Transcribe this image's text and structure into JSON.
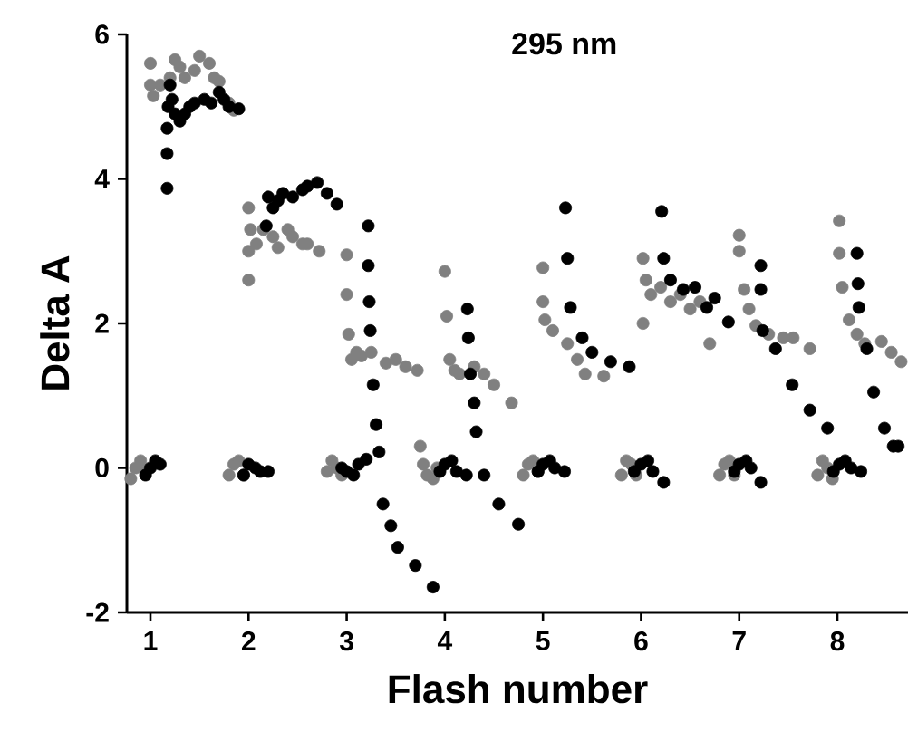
{
  "chart_data": {
    "type": "scatter",
    "title": "295 nm",
    "xlabel": "Flash number",
    "ylabel": "Delta A",
    "xlim": [
      0.76,
      8.72
    ],
    "ylim": [
      -2,
      6
    ],
    "xticks": [
      1,
      2,
      3,
      4,
      5,
      6,
      7,
      8
    ],
    "yticks": [
      -2,
      0,
      2,
      4,
      6
    ],
    "marker": "circle",
    "series": [
      {
        "color": "#808080",
        "x": [
          0.8,
          0.85,
          0.9,
          0.95,
          1.0,
          1.0,
          1.03,
          1.1,
          1.2,
          1.25,
          1.3,
          1.35,
          1.45,
          1.5,
          1.6,
          1.65,
          1.7,
          1.8,
          1.85,
          1.8,
          1.85,
          1.9,
          1.95,
          2.0,
          2.0,
          2.0,
          2.02,
          2.08,
          2.15,
          2.25,
          2.3,
          2.4,
          2.45,
          2.55,
          2.6,
          2.72,
          2.8,
          2.85,
          2.9,
          2.95,
          3.0,
          3.0,
          3.02,
          3.05,
          3.1,
          3.15,
          3.25,
          3.4,
          3.5,
          3.6,
          3.72,
          3.75,
          3.78,
          3.82,
          3.88,
          3.92,
          4.0,
          4.02,
          4.05,
          4.1,
          4.15,
          4.3,
          4.4,
          4.5,
          4.68,
          4.8,
          4.85,
          4.9,
          4.95,
          5.0,
          5.0,
          5.02,
          5.1,
          5.25,
          5.35,
          5.43,
          5.62,
          5.8,
          5.85,
          5.9,
          5.95,
          6.02,
          6.02,
          6.05,
          6.1,
          6.2,
          6.3,
          6.4,
          6.5,
          6.6,
          6.7,
          6.8,
          6.85,
          6.9,
          6.95,
          7.0,
          7.0,
          7.05,
          7.1,
          7.17,
          7.3,
          7.45,
          7.55,
          7.72,
          7.8,
          7.85,
          7.9,
          7.95,
          8.02,
          8.02,
          8.05,
          8.12,
          8.2,
          8.28,
          8.45,
          8.55,
          8.65
        ],
        "values": [
          -0.15,
          0.0,
          0.1,
          -0.05,
          5.6,
          5.3,
          5.15,
          5.3,
          5.4,
          5.65,
          5.55,
          5.4,
          5.5,
          5.7,
          5.6,
          5.4,
          5.35,
          5.05,
          4.95,
          -0.1,
          0.05,
          0.1,
          -0.1,
          2.6,
          3.6,
          3.0,
          3.3,
          3.1,
          3.3,
          3.2,
          3.05,
          3.3,
          3.2,
          3.1,
          3.1,
          3.0,
          -0.05,
          0.1,
          0.0,
          -0.1,
          2.95,
          2.4,
          1.85,
          1.5,
          1.6,
          1.55,
          1.6,
          1.45,
          1.5,
          1.4,
          1.35,
          0.3,
          0.05,
          -0.1,
          -0.15,
          0.0,
          2.72,
          2.1,
          1.5,
          1.35,
          1.3,
          1.4,
          1.3,
          1.15,
          0.9,
          -0.1,
          0.05,
          0.1,
          -0.05,
          2.77,
          2.3,
          2.05,
          1.9,
          1.72,
          1.5,
          1.3,
          1.27,
          -0.1,
          0.1,
          0.05,
          -0.1,
          2.9,
          2.0,
          2.6,
          2.4,
          2.5,
          2.3,
          2.4,
          2.2,
          2.3,
          1.72,
          -0.1,
          0.05,
          0.1,
          -0.1,
          3.22,
          3.0,
          2.47,
          2.2,
          1.97,
          1.85,
          1.8,
          1.8,
          1.65,
          -0.1,
          0.1,
          0.0,
          -0.15,
          3.42,
          2.97,
          2.5,
          2.05,
          1.85,
          1.72,
          1.75,
          1.6,
          1.47
        ]
      },
      {
        "color": "#000000",
        "x": [
          0.95,
          1.0,
          1.05,
          1.1,
          1.17,
          1.17,
          1.17,
          1.18,
          1.2,
          1.22,
          1.25,
          1.3,
          1.35,
          1.4,
          1.45,
          1.55,
          1.62,
          1.7,
          1.75,
          1.8,
          1.9,
          1.95,
          2.0,
          2.07,
          2.12,
          2.2,
          2.18,
          2.2,
          2.25,
          2.3,
          2.35,
          2.45,
          2.55,
          2.6,
          2.7,
          2.8,
          2.9,
          2.95,
          3.0,
          3.07,
          3.12,
          3.2,
          3.22,
          3.22,
          3.23,
          3.24,
          3.27,
          3.3,
          3.33,
          3.37,
          3.45,
          3.52,
          3.7,
          3.88,
          3.95,
          4.0,
          4.07,
          4.12,
          4.22,
          4.23,
          4.24,
          4.26,
          4.3,
          4.32,
          4.4,
          4.55,
          4.75,
          4.95,
          5.0,
          5.07,
          5.12,
          5.22,
          5.23,
          5.25,
          5.28,
          5.4,
          5.5,
          5.69,
          5.88,
          5.93,
          6.0,
          6.07,
          6.12,
          6.23,
          6.21,
          6.23,
          6.3,
          6.43,
          6.55,
          6.67,
          6.75,
          6.89,
          6.95,
          7.0,
          7.07,
          7.12,
          7.22,
          7.22,
          7.22,
          7.24,
          7.37,
          7.54,
          7.72,
          7.9,
          7.96,
          8.02,
          8.08,
          8.14,
          8.24,
          8.2,
          8.21,
          8.22,
          8.3,
          8.37,
          8.48,
          8.57,
          8.62
        ],
        "values": [
          -0.1,
          0.0,
          0.1,
          0.05,
          3.87,
          4.35,
          4.7,
          5.0,
          5.3,
          5.1,
          4.9,
          4.8,
          4.9,
          5.0,
          5.05,
          5.1,
          5.05,
          5.2,
          5.1,
          5.0,
          4.97,
          -0.1,
          0.05,
          0.0,
          -0.05,
          -0.05,
          3.35,
          3.75,
          3.6,
          3.7,
          3.8,
          3.75,
          3.85,
          3.9,
          3.95,
          3.8,
          3.65,
          0.0,
          -0.05,
          -0.1,
          0.05,
          0.12,
          3.35,
          2.8,
          2.3,
          1.9,
          1.15,
          0.6,
          0.22,
          -0.5,
          -0.8,
          -1.1,
          -1.35,
          -1.65,
          -0.05,
          0.05,
          0.1,
          -0.05,
          -0.1,
          2.2,
          1.8,
          1.3,
          0.9,
          0.5,
          -0.1,
          -0.5,
          -0.78,
          -0.05,
          0.05,
          0.1,
          0.0,
          -0.05,
          3.6,
          2.9,
          2.22,
          1.8,
          1.6,
          1.47,
          1.4,
          -0.05,
          0.05,
          0.1,
          -0.05,
          -0.2,
          3.55,
          2.9,
          2.6,
          2.47,
          2.5,
          2.22,
          2.35,
          2.02,
          -0.05,
          0.05,
          0.1,
          0.0,
          -0.2,
          2.8,
          2.47,
          1.9,
          1.65,
          1.15,
          0.8,
          0.55,
          -0.05,
          0.05,
          0.1,
          0.0,
          -0.05,
          2.97,
          2.55,
          2.22,
          1.65,
          1.05,
          0.55,
          0.3,
          0.3
        ]
      }
    ]
  }
}
